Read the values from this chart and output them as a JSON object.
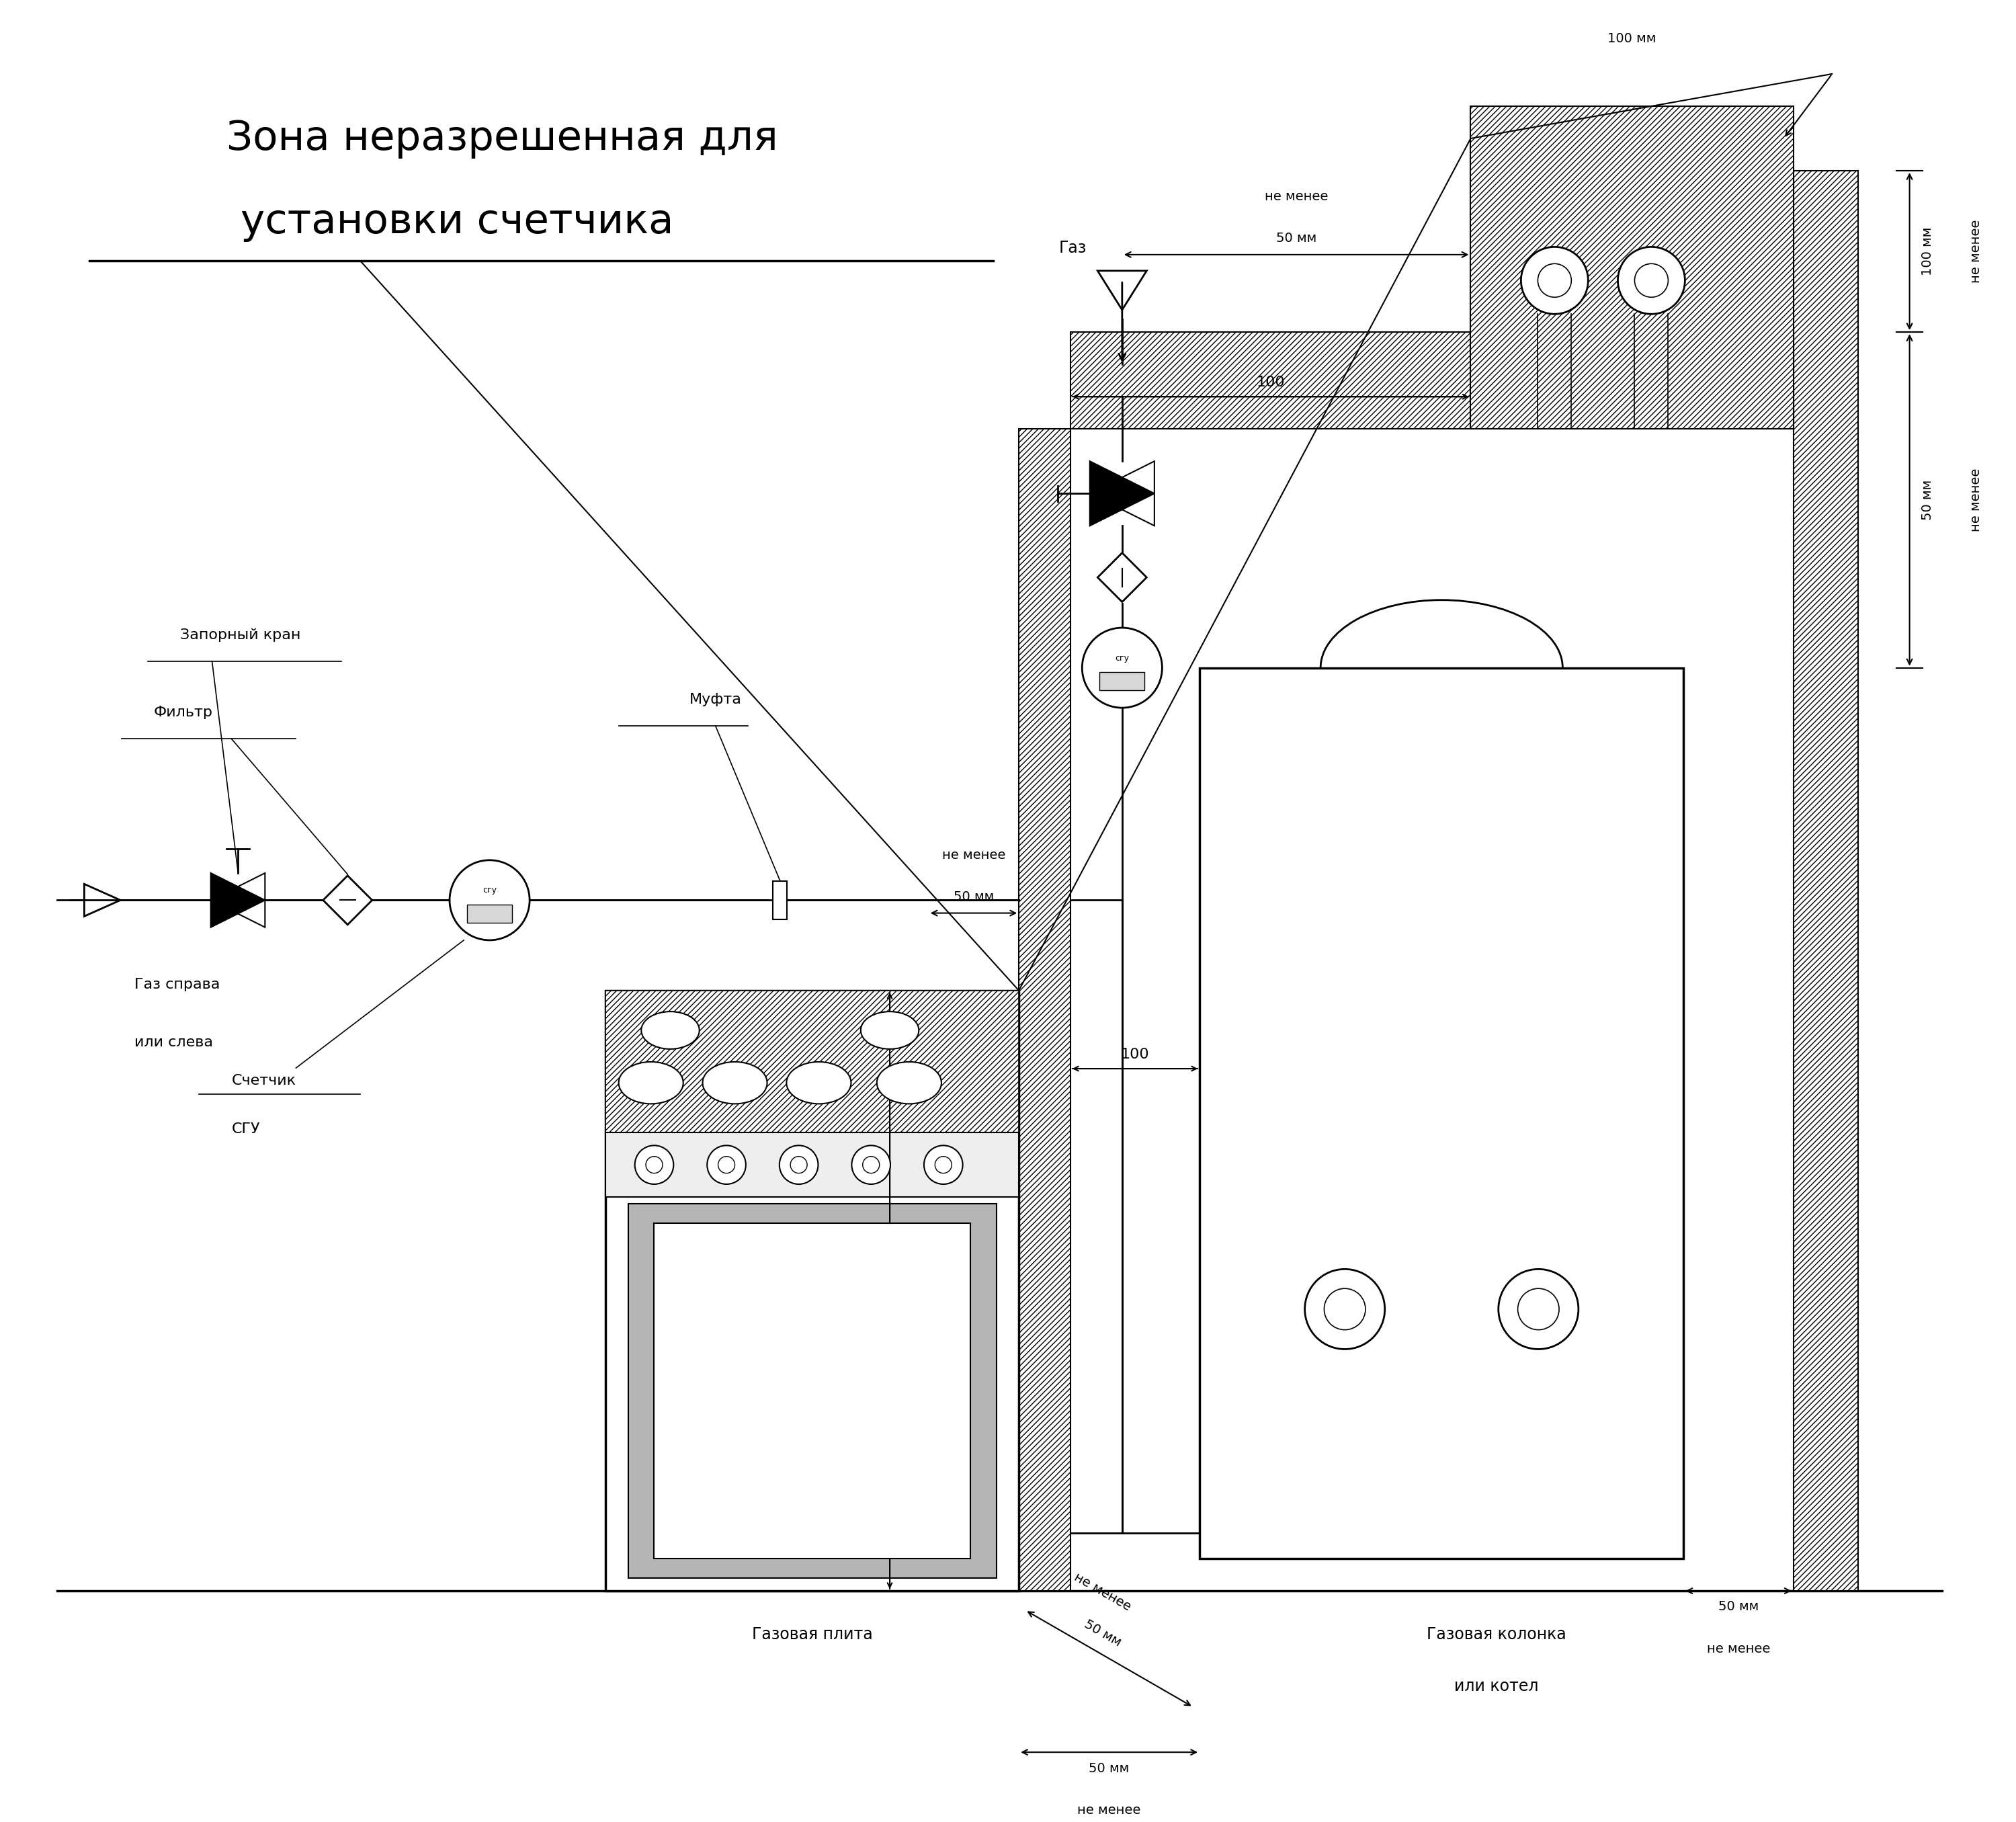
{
  "title_line1": "Зона неразрешенная для",
  "title_line2": "установки счетчика",
  "label_mufta": "Муфта",
  "label_zapor": "Запорный кран",
  "label_filtr": "Фильтр",
  "label_gaz_dir1": "Газ справа",
  "label_gaz_dir2": "или слева",
  "label_schetchik1": "Счетчик",
  "label_schetchik2": "СГУ",
  "label_gaz_plate": "Газовая плита",
  "label_gaz_kolonka1": "Газовая колонка",
  "label_gaz_kolonka2": "или котел",
  "label_gaz": "Газ",
  "sgu_text": "сгу",
  "bg": "#ffffff",
  "black": "#000000"
}
